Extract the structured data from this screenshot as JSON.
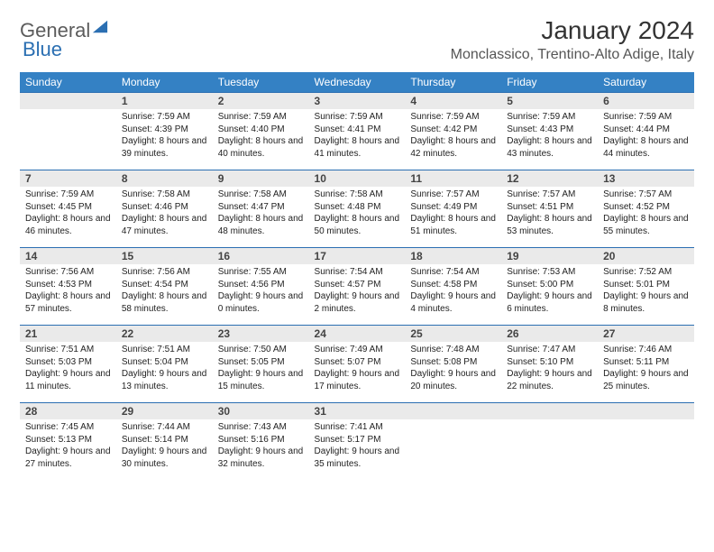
{
  "logo": {
    "text1": "General",
    "text2": "Blue"
  },
  "title": "January 2024",
  "subtitle": "Monclassico, Trentino-Alto Adige, Italy",
  "colors": {
    "header_bg": "#3481c4",
    "header_fg": "#ffffff",
    "daynum_bg": "#eaeaea",
    "daynum_border": "#2b6fb2",
    "text": "#222222",
    "logo_gray": "#5c5c5c",
    "logo_blue": "#2b6fb2"
  },
  "day_headers": [
    "Sunday",
    "Monday",
    "Tuesday",
    "Wednesday",
    "Thursday",
    "Friday",
    "Saturday"
  ],
  "weeks": [
    [
      {
        "n": "",
        "sr": "",
        "ss": "",
        "dl": "",
        "empty": true
      },
      {
        "n": "1",
        "sr": "Sunrise: 7:59 AM",
        "ss": "Sunset: 4:39 PM",
        "dl": "Daylight: 8 hours and 39 minutes."
      },
      {
        "n": "2",
        "sr": "Sunrise: 7:59 AM",
        "ss": "Sunset: 4:40 PM",
        "dl": "Daylight: 8 hours and 40 minutes."
      },
      {
        "n": "3",
        "sr": "Sunrise: 7:59 AM",
        "ss": "Sunset: 4:41 PM",
        "dl": "Daylight: 8 hours and 41 minutes."
      },
      {
        "n": "4",
        "sr": "Sunrise: 7:59 AM",
        "ss": "Sunset: 4:42 PM",
        "dl": "Daylight: 8 hours and 42 minutes."
      },
      {
        "n": "5",
        "sr": "Sunrise: 7:59 AM",
        "ss": "Sunset: 4:43 PM",
        "dl": "Daylight: 8 hours and 43 minutes."
      },
      {
        "n": "6",
        "sr": "Sunrise: 7:59 AM",
        "ss": "Sunset: 4:44 PM",
        "dl": "Daylight: 8 hours and 44 minutes."
      }
    ],
    [
      {
        "n": "7",
        "sr": "Sunrise: 7:59 AM",
        "ss": "Sunset: 4:45 PM",
        "dl": "Daylight: 8 hours and 46 minutes."
      },
      {
        "n": "8",
        "sr": "Sunrise: 7:58 AM",
        "ss": "Sunset: 4:46 PM",
        "dl": "Daylight: 8 hours and 47 minutes."
      },
      {
        "n": "9",
        "sr": "Sunrise: 7:58 AM",
        "ss": "Sunset: 4:47 PM",
        "dl": "Daylight: 8 hours and 48 minutes."
      },
      {
        "n": "10",
        "sr": "Sunrise: 7:58 AM",
        "ss": "Sunset: 4:48 PM",
        "dl": "Daylight: 8 hours and 50 minutes."
      },
      {
        "n": "11",
        "sr": "Sunrise: 7:57 AM",
        "ss": "Sunset: 4:49 PM",
        "dl": "Daylight: 8 hours and 51 minutes."
      },
      {
        "n": "12",
        "sr": "Sunrise: 7:57 AM",
        "ss": "Sunset: 4:51 PM",
        "dl": "Daylight: 8 hours and 53 minutes."
      },
      {
        "n": "13",
        "sr": "Sunrise: 7:57 AM",
        "ss": "Sunset: 4:52 PM",
        "dl": "Daylight: 8 hours and 55 minutes."
      }
    ],
    [
      {
        "n": "14",
        "sr": "Sunrise: 7:56 AM",
        "ss": "Sunset: 4:53 PM",
        "dl": "Daylight: 8 hours and 57 minutes."
      },
      {
        "n": "15",
        "sr": "Sunrise: 7:56 AM",
        "ss": "Sunset: 4:54 PM",
        "dl": "Daylight: 8 hours and 58 minutes."
      },
      {
        "n": "16",
        "sr": "Sunrise: 7:55 AM",
        "ss": "Sunset: 4:56 PM",
        "dl": "Daylight: 9 hours and 0 minutes."
      },
      {
        "n": "17",
        "sr": "Sunrise: 7:54 AM",
        "ss": "Sunset: 4:57 PM",
        "dl": "Daylight: 9 hours and 2 minutes."
      },
      {
        "n": "18",
        "sr": "Sunrise: 7:54 AM",
        "ss": "Sunset: 4:58 PM",
        "dl": "Daylight: 9 hours and 4 minutes."
      },
      {
        "n": "19",
        "sr": "Sunrise: 7:53 AM",
        "ss": "Sunset: 5:00 PM",
        "dl": "Daylight: 9 hours and 6 minutes."
      },
      {
        "n": "20",
        "sr": "Sunrise: 7:52 AM",
        "ss": "Sunset: 5:01 PM",
        "dl": "Daylight: 9 hours and 8 minutes."
      }
    ],
    [
      {
        "n": "21",
        "sr": "Sunrise: 7:51 AM",
        "ss": "Sunset: 5:03 PM",
        "dl": "Daylight: 9 hours and 11 minutes."
      },
      {
        "n": "22",
        "sr": "Sunrise: 7:51 AM",
        "ss": "Sunset: 5:04 PM",
        "dl": "Daylight: 9 hours and 13 minutes."
      },
      {
        "n": "23",
        "sr": "Sunrise: 7:50 AM",
        "ss": "Sunset: 5:05 PM",
        "dl": "Daylight: 9 hours and 15 minutes."
      },
      {
        "n": "24",
        "sr": "Sunrise: 7:49 AM",
        "ss": "Sunset: 5:07 PM",
        "dl": "Daylight: 9 hours and 17 minutes."
      },
      {
        "n": "25",
        "sr": "Sunrise: 7:48 AM",
        "ss": "Sunset: 5:08 PM",
        "dl": "Daylight: 9 hours and 20 minutes."
      },
      {
        "n": "26",
        "sr": "Sunrise: 7:47 AM",
        "ss": "Sunset: 5:10 PM",
        "dl": "Daylight: 9 hours and 22 minutes."
      },
      {
        "n": "27",
        "sr": "Sunrise: 7:46 AM",
        "ss": "Sunset: 5:11 PM",
        "dl": "Daylight: 9 hours and 25 minutes."
      }
    ],
    [
      {
        "n": "28",
        "sr": "Sunrise: 7:45 AM",
        "ss": "Sunset: 5:13 PM",
        "dl": "Daylight: 9 hours and 27 minutes."
      },
      {
        "n": "29",
        "sr": "Sunrise: 7:44 AM",
        "ss": "Sunset: 5:14 PM",
        "dl": "Daylight: 9 hours and 30 minutes."
      },
      {
        "n": "30",
        "sr": "Sunrise: 7:43 AM",
        "ss": "Sunset: 5:16 PM",
        "dl": "Daylight: 9 hours and 32 minutes."
      },
      {
        "n": "31",
        "sr": "Sunrise: 7:41 AM",
        "ss": "Sunset: 5:17 PM",
        "dl": "Daylight: 9 hours and 35 minutes."
      },
      {
        "n": "",
        "sr": "",
        "ss": "",
        "dl": "",
        "empty": true
      },
      {
        "n": "",
        "sr": "",
        "ss": "",
        "dl": "",
        "empty": true
      },
      {
        "n": "",
        "sr": "",
        "ss": "",
        "dl": "",
        "empty": true
      }
    ]
  ]
}
